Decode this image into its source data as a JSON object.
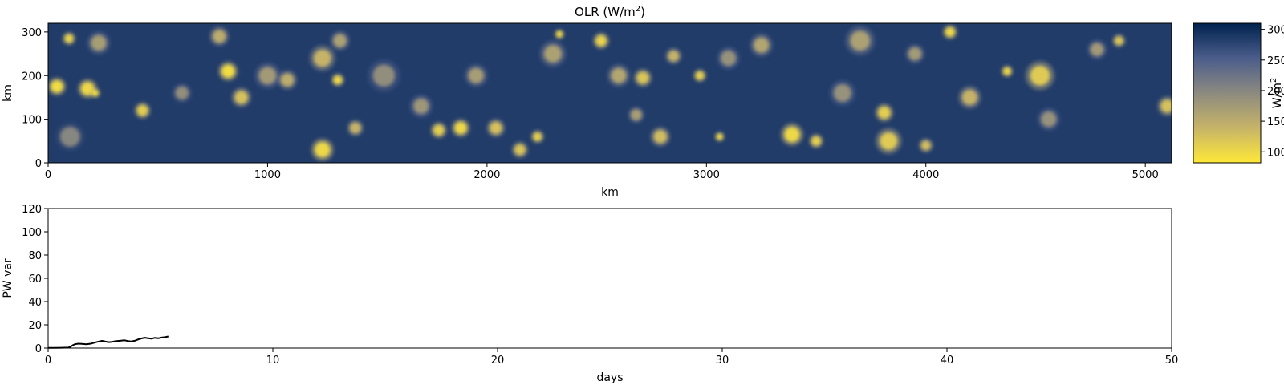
{
  "chart_data": [
    {
      "type": "heatmap",
      "title_main": "OLR (W/m",
      "title_sup": "2",
      "title_close": ")",
      "xlabel": "km",
      "ylabel": "km",
      "xlim": [
        0,
        5120
      ],
      "ylim": [
        0,
        320
      ],
      "x_ticks": [
        0,
        1000,
        2000,
        3000,
        4000,
        5000
      ],
      "y_ticks": [
        0,
        100,
        200,
        300
      ],
      "colormap": "cividis_r",
      "colorbar": {
        "label_main": "W/m",
        "label_sup": "2",
        "range": [
          82,
          310
        ],
        "ticks": [
          100,
          150,
          200,
          250,
          300
        ]
      },
      "background_value": 285,
      "clouds": [
        {
          "x": 40,
          "y": 175,
          "r": 28,
          "v": 95
        },
        {
          "x": 100,
          "y": 60,
          "r": 45,
          "v": 200
        },
        {
          "x": 180,
          "y": 170,
          "r": 30,
          "v": 100
        },
        {
          "x": 95,
          "y": 285,
          "r": 20,
          "v": 105
        },
        {
          "x": 230,
          "y": 275,
          "r": 35,
          "v": 170
        },
        {
          "x": 215,
          "y": 160,
          "r": 15,
          "v": 95
        },
        {
          "x": 430,
          "y": 120,
          "r": 25,
          "v": 110
        },
        {
          "x": 780,
          "y": 290,
          "r": 30,
          "v": 150
        },
        {
          "x": 820,
          "y": 210,
          "r": 30,
          "v": 95
        },
        {
          "x": 880,
          "y": 150,
          "r": 30,
          "v": 125
        },
        {
          "x": 1000,
          "y": 200,
          "r": 40,
          "v": 175
        },
        {
          "x": 1090,
          "y": 190,
          "r": 30,
          "v": 150
        },
        {
          "x": 1250,
          "y": 30,
          "r": 35,
          "v": 100
        },
        {
          "x": 1250,
          "y": 240,
          "r": 40,
          "v": 140
        },
        {
          "x": 1320,
          "y": 190,
          "r": 20,
          "v": 100
        },
        {
          "x": 1400,
          "y": 80,
          "r": 25,
          "v": 140
        },
        {
          "x": 1530,
          "y": 200,
          "r": 50,
          "v": 190
        },
        {
          "x": 1700,
          "y": 130,
          "r": 35,
          "v": 180
        },
        {
          "x": 1780,
          "y": 75,
          "r": 25,
          "v": 110
        },
        {
          "x": 1880,
          "y": 80,
          "r": 28,
          "v": 100
        },
        {
          "x": 1950,
          "y": 200,
          "r": 35,
          "v": 170
        },
        {
          "x": 2040,
          "y": 80,
          "r": 28,
          "v": 125
        },
        {
          "x": 2230,
          "y": 60,
          "r": 20,
          "v": 110
        },
        {
          "x": 2300,
          "y": 250,
          "r": 40,
          "v": 165
        },
        {
          "x": 2330,
          "y": 295,
          "r": 15,
          "v": 95
        },
        {
          "x": 2520,
          "y": 280,
          "r": 25,
          "v": 105
        },
        {
          "x": 2600,
          "y": 200,
          "r": 35,
          "v": 160
        },
        {
          "x": 2710,
          "y": 195,
          "r": 28,
          "v": 120
        },
        {
          "x": 2790,
          "y": 60,
          "r": 30,
          "v": 130
        },
        {
          "x": 2850,
          "y": 245,
          "r": 25,
          "v": 140
        },
        {
          "x": 2970,
          "y": 200,
          "r": 20,
          "v": 110
        },
        {
          "x": 3060,
          "y": 60,
          "r": 15,
          "v": 100
        },
        {
          "x": 3100,
          "y": 240,
          "r": 35,
          "v": 185
        },
        {
          "x": 3250,
          "y": 270,
          "r": 35,
          "v": 160
        },
        {
          "x": 3390,
          "y": 65,
          "r": 35,
          "v": 100
        },
        {
          "x": 3500,
          "y": 50,
          "r": 22,
          "v": 110
        },
        {
          "x": 3700,
          "y": 280,
          "r": 45,
          "v": 165
        },
        {
          "x": 3810,
          "y": 115,
          "r": 28,
          "v": 110
        },
        {
          "x": 3830,
          "y": 50,
          "r": 40,
          "v": 115
        },
        {
          "x": 3950,
          "y": 250,
          "r": 30,
          "v": 175
        },
        {
          "x": 4110,
          "y": 300,
          "r": 22,
          "v": 100
        },
        {
          "x": 4200,
          "y": 150,
          "r": 35,
          "v": 140
        },
        {
          "x": 4520,
          "y": 200,
          "r": 45,
          "v": 115
        },
        {
          "x": 4560,
          "y": 100,
          "r": 35,
          "v": 185
        },
        {
          "x": 4780,
          "y": 260,
          "r": 30,
          "v": 175
        },
        {
          "x": 4880,
          "y": 280,
          "r": 20,
          "v": 120
        },
        {
          "x": 5100,
          "y": 130,
          "r": 30,
          "v": 125
        },
        {
          "x": 4370,
          "y": 210,
          "r": 18,
          "v": 100
        },
        {
          "x": 2150,
          "y": 30,
          "r": 25,
          "v": 120
        },
        {
          "x": 3620,
          "y": 160,
          "r": 40,
          "v": 185
        },
        {
          "x": 610,
          "y": 160,
          "r": 30,
          "v": 190
        },
        {
          "x": 1330,
          "y": 280,
          "r": 30,
          "v": 165
        },
        {
          "x": 2680,
          "y": 110,
          "r": 25,
          "v": 170
        },
        {
          "x": 4000,
          "y": 40,
          "r": 22,
          "v": 130
        }
      ]
    },
    {
      "type": "line",
      "xlabel": "days",
      "ylabel": "PW var",
      "xlim": [
        0,
        50
      ],
      "ylim": [
        0,
        120
      ],
      "x_ticks": [
        0,
        10,
        20,
        30,
        40,
        50
      ],
      "y_ticks": [
        0,
        20,
        40,
        60,
        80,
        100,
        120
      ],
      "series": [
        {
          "color": "#000000",
          "x": [
            0,
            0.3,
            0.6,
            0.9,
            1.0,
            1.1,
            1.2,
            1.35,
            1.5,
            1.7,
            1.9,
            2.05,
            2.2,
            2.4,
            2.55,
            2.7,
            2.85,
            3.0,
            3.2,
            3.4,
            3.55,
            3.7,
            3.85,
            4.0,
            4.15,
            4.3,
            4.45,
            4.6,
            4.75,
            4.9,
            5.05,
            5.2,
            5.35
          ],
          "y": [
            0.2,
            0.2,
            0.3,
            0.4,
            1.2,
            2.5,
            3.4,
            3.8,
            3.6,
            3.3,
            3.8,
            4.6,
            5.4,
            6.2,
            5.6,
            5.1,
            5.4,
            5.9,
            6.3,
            6.7,
            6.1,
            5.7,
            6.3,
            7.4,
            8.3,
            8.9,
            8.5,
            8.1,
            8.8,
            8.4,
            9.0,
            9.4,
            10.0
          ]
        }
      ]
    }
  ]
}
